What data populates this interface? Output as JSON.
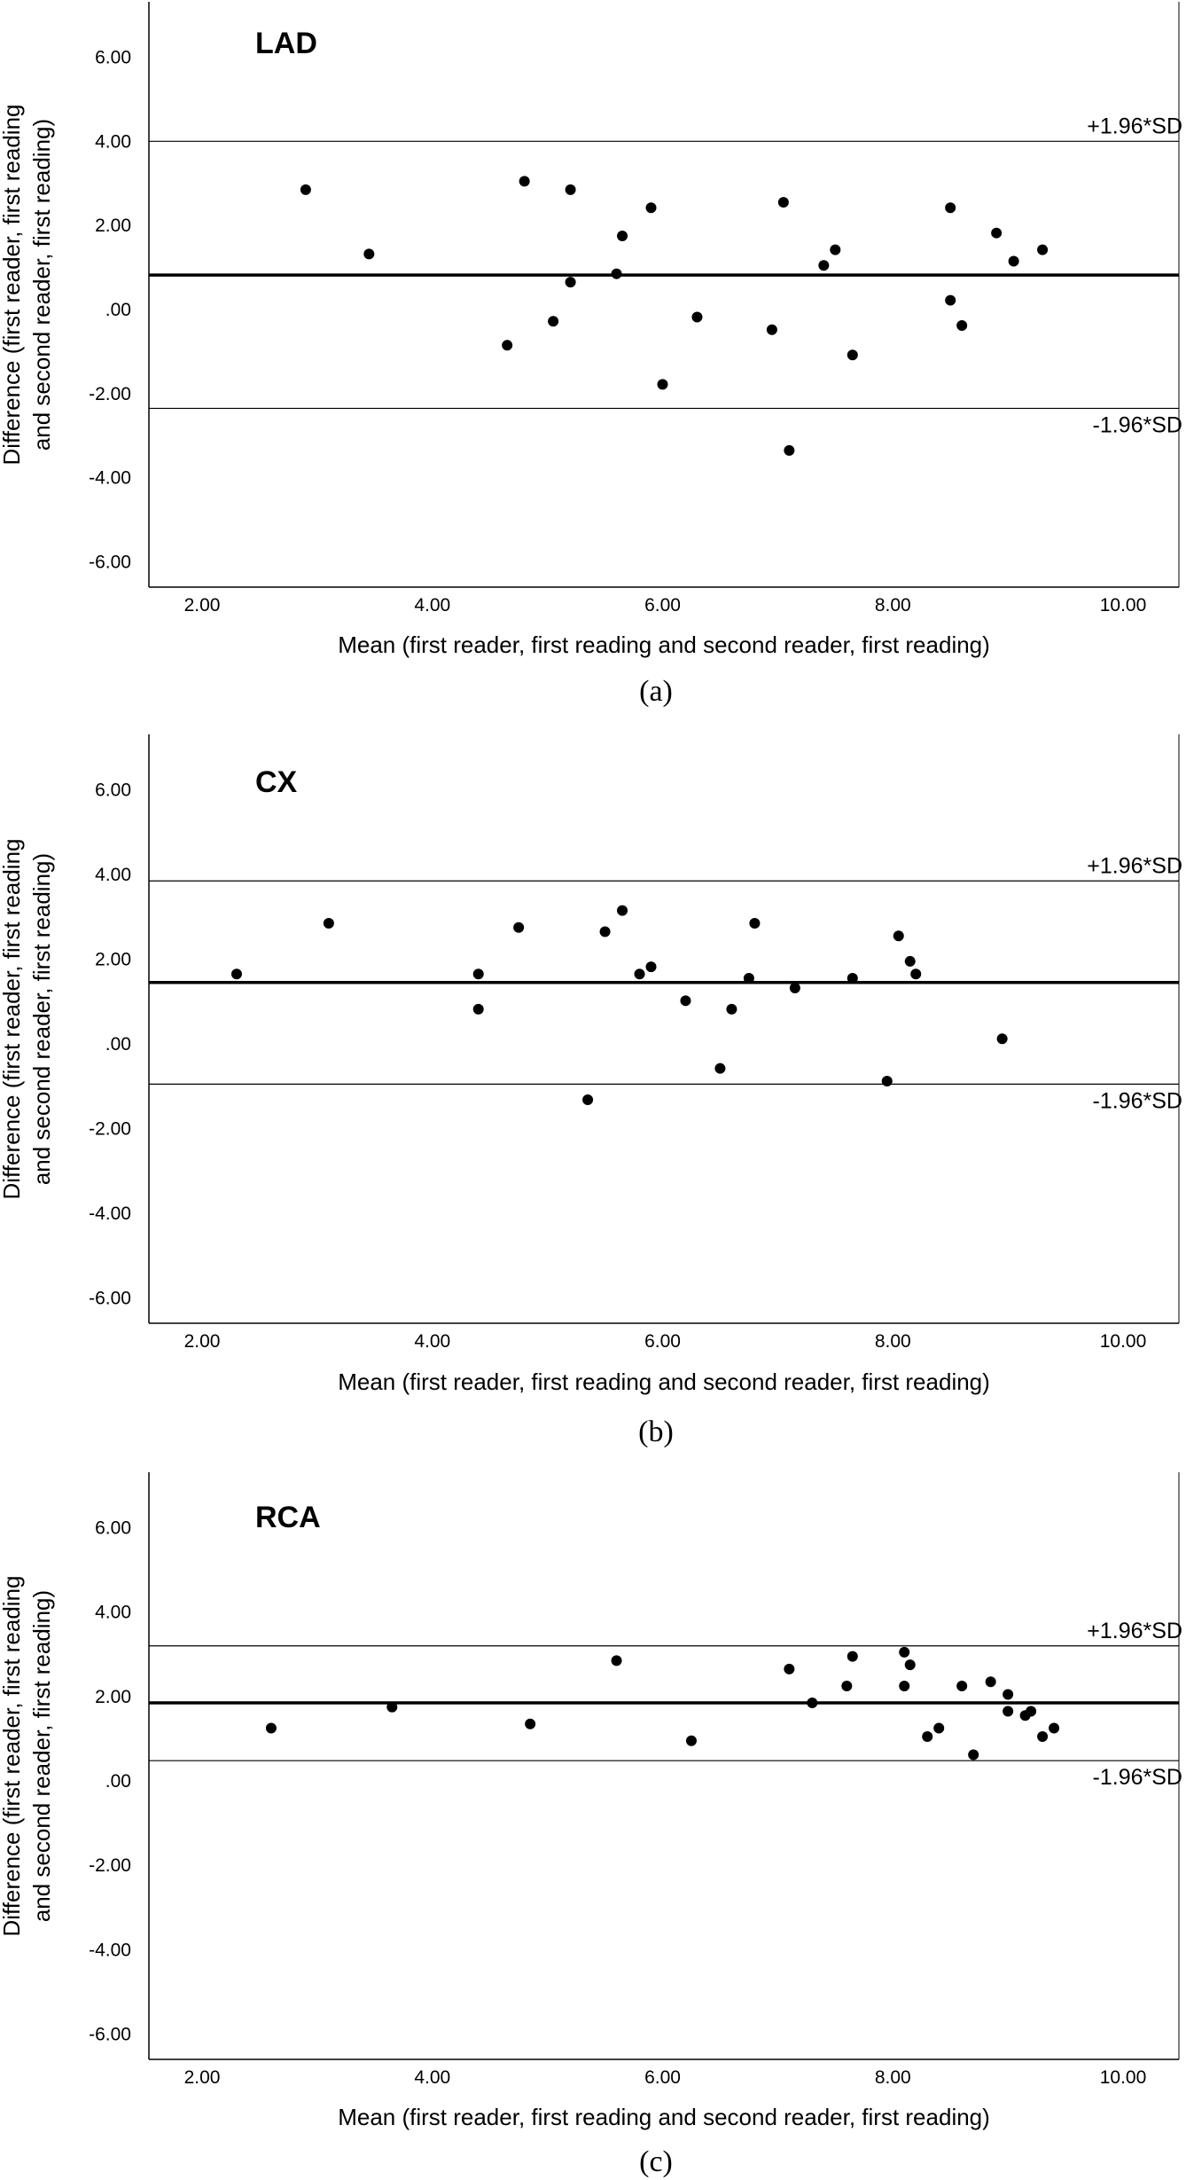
{
  "chart_data": [
    {
      "type": "scatter",
      "panel_title": "LAD",
      "caption": "(a)",
      "xlabel": "Mean (first reader, first reading and second reader, first reading)",
      "ylabel_line1": "Difference (first reader, first reading",
      "ylabel_line2": "and second reader, first reading)",
      "x_ticks": [
        "2.00",
        "4.00",
        "6.00",
        "8.00",
        "10.00"
      ],
      "y_ticks": [
        "6.00",
        "4.00",
        "2.00",
        ".00",
        "-2.00",
        "-4.00",
        "-6.00"
      ],
      "xlim": [
        1.55,
        10.45
      ],
      "ylim": [
        -6.6,
        6.6
      ],
      "mean_diff": 0.82,
      "upper_loa": 4.0,
      "lower_loa": -2.35,
      "upper_label": "+1.96*SD",
      "lower_label": "-1.96*SD",
      "points": [
        [
          2.9,
          2.85
        ],
        [
          3.45,
          1.32
        ],
        [
          4.65,
          -0.85
        ],
        [
          4.8,
          3.05
        ],
        [
          5.05,
          -0.28
        ],
        [
          5.2,
          2.85
        ],
        [
          5.2,
          0.65
        ],
        [
          5.6,
          0.85
        ],
        [
          5.65,
          1.75
        ],
        [
          5.9,
          2.42
        ],
        [
          6.0,
          -1.78
        ],
        [
          6.3,
          -0.18
        ],
        [
          6.95,
          -0.48
        ],
        [
          7.05,
          2.55
        ],
        [
          7.1,
          -3.35
        ],
        [
          7.4,
          1.05
        ],
        [
          7.5,
          1.42
        ],
        [
          7.65,
          -1.08
        ],
        [
          8.5,
          2.42
        ],
        [
          8.5,
          0.22
        ],
        [
          8.6,
          -0.38
        ],
        [
          8.9,
          1.82
        ],
        [
          9.05,
          1.15
        ],
        [
          9.3,
          1.42
        ]
      ]
    },
    {
      "type": "scatter",
      "panel_title": "CX",
      "caption": "(b)",
      "xlabel": "Mean (first reader, first reading and second reader, first reading)",
      "ylabel_line1": "Difference (first reader, first reading",
      "ylabel_line2": "and second reader, first reading)",
      "x_ticks": [
        "2.00",
        "4.00",
        "6.00",
        "8.00",
        "10.00"
      ],
      "y_ticks": [
        "6.00",
        "4.00",
        "2.00",
        ".00",
        "-2.00",
        "-4.00",
        "-6.00"
      ],
      "xlim": [
        1.55,
        10.45
      ],
      "ylim": [
        -6.6,
        6.6
      ],
      "mean_diff": 1.45,
      "upper_loa": 3.85,
      "lower_loa": -0.95,
      "upper_label": "+1.96*SD",
      "lower_label": "-1.96*SD",
      "points": [
        [
          2.3,
          1.65
        ],
        [
          3.1,
          2.85
        ],
        [
          4.4,
          1.65
        ],
        [
          4.4,
          0.82
        ],
        [
          4.75,
          2.75
        ],
        [
          5.35,
          -1.32
        ],
        [
          5.5,
          2.65
        ],
        [
          5.65,
          3.15
        ],
        [
          5.8,
          1.65
        ],
        [
          5.9,
          1.82
        ],
        [
          6.2,
          1.02
        ],
        [
          6.5,
          -0.58
        ],
        [
          6.6,
          0.82
        ],
        [
          6.75,
          1.55
        ],
        [
          6.8,
          2.85
        ],
        [
          7.15,
          1.32
        ],
        [
          7.65,
          1.55
        ],
        [
          7.95,
          -0.88
        ],
        [
          8.05,
          2.55
        ],
        [
          8.15,
          1.95
        ],
        [
          8.2,
          1.65
        ],
        [
          8.95,
          0.12
        ]
      ]
    },
    {
      "type": "scatter",
      "panel_title": "RCA",
      "caption": "(c)",
      "xlabel": "Mean (first reader, first reading and second reader, first reading)",
      "ylabel_line1": "Difference (first reader, first reading",
      "ylabel_line2": "and second reader, first reading)",
      "x_ticks": [
        "2.00",
        "4.00",
        "6.00",
        "8.00",
        "10.00"
      ],
      "y_ticks": [
        "6.00",
        "4.00",
        "2.00",
        ".00",
        "-2.00",
        "-4.00",
        "-6.00"
      ],
      "xlim": [
        1.55,
        10.45
      ],
      "ylim": [
        -6.6,
        6.6
      ],
      "mean_diff": 1.85,
      "upper_loa": 3.2,
      "lower_loa": 0.48,
      "upper_label": "+1.96*SD",
      "lower_label": "-1.96*SD",
      "points": [
        [
          2.6,
          1.25
        ],
        [
          3.65,
          1.75
        ],
        [
          4.85,
          1.35
        ],
        [
          5.6,
          2.85
        ],
        [
          6.25,
          0.95
        ],
        [
          7.1,
          2.65
        ],
        [
          7.3,
          1.85
        ],
        [
          7.6,
          2.25
        ],
        [
          7.65,
          2.95
        ],
        [
          8.1,
          3.05
        ],
        [
          8.1,
          2.25
        ],
        [
          8.15,
          2.75
        ],
        [
          8.3,
          1.05
        ],
        [
          8.4,
          1.25
        ],
        [
          8.6,
          2.25
        ],
        [
          8.7,
          0.62
        ],
        [
          8.85,
          2.35
        ],
        [
          9.0,
          2.05
        ],
        [
          9.0,
          1.65
        ],
        [
          9.15,
          1.55
        ],
        [
          9.2,
          1.65
        ],
        [
          9.3,
          1.05
        ],
        [
          9.4,
          1.25
        ]
      ]
    }
  ]
}
